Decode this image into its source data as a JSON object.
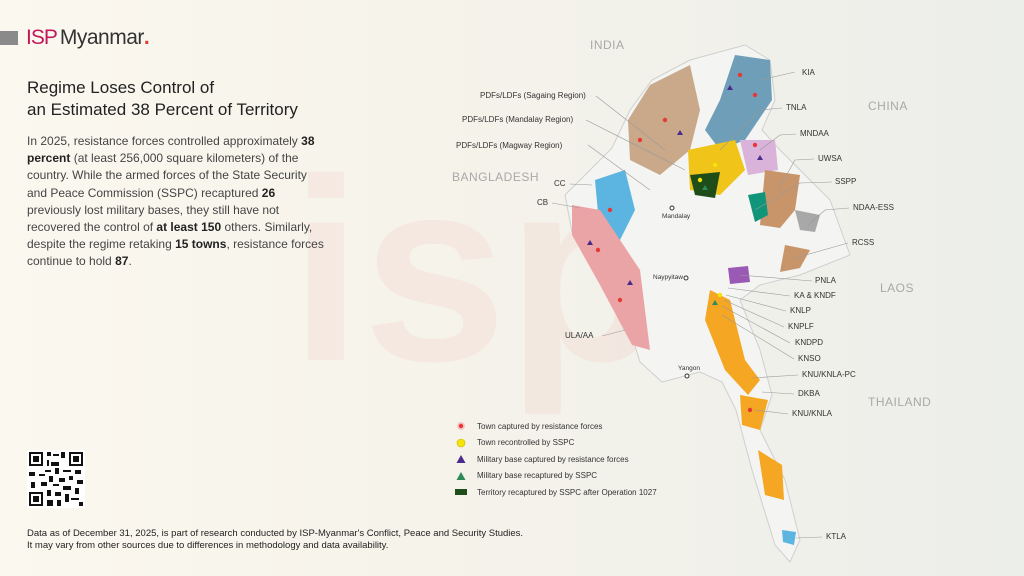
{
  "brand": {
    "prefix": "ISP",
    "name": "Myanmar",
    "dot": "."
  },
  "title_line1": "Regime Loses Control of",
  "title_line2": "an Estimated 38 Percent of Territory",
  "body": {
    "p1": "In 2025, resistance forces controlled approximately ",
    "b1": "38 percent",
    "p2": " (at least 256,000 square kilometers) of the country. While the armed forces of the State Security and Peace Commission (SSPC) recaptured ",
    "b2": "26",
    "p3": " previously lost military bases, they still have not recovered the control of ",
    "b3": "at least 150",
    "p4": " others. Similarly, despite the regime retaking ",
    "b4": "15 towns",
    "p5": ", resistance forces continue to hold ",
    "b5": "87",
    "p6": "."
  },
  "countries": {
    "india": "INDIA",
    "china": "CHINA",
    "bangladesh": "BANGLADESH",
    "laos": "LAOS",
    "thailand": "THAILAND"
  },
  "cities": {
    "mandalay": "Mandalay",
    "naypyitaw": "Naypyitaw",
    "yangon": "Yangon"
  },
  "groups": {
    "kia": "KIA",
    "tnla": "TNLA",
    "mndaa": "MNDAA",
    "uwsa": "UWSA",
    "sspp": "SSPP",
    "ndaa": "NDAA-ESS",
    "rcss": "RCSS",
    "pnla": "PNLA",
    "ka": "KA & KNDF",
    "knlp": "KNLP",
    "knplf": "KNPLF",
    "kndpd": "KNDPD",
    "knso": "KNSO",
    "knupc": "KNU/KNLA-PC",
    "dkba": "DKBA",
    "knu": "KNU/KNLA",
    "ktla": "KTLA",
    "sagaing": "PDFs/LDFs (Sagaing Region)",
    "mandalay": "PDFs/LDFs (Mandalay Region)",
    "magway": "PDFs/LDFs (Magway Region)",
    "cc": "CC",
    "cb": "CB",
    "ula": "ULA/AA"
  },
  "legend": [
    {
      "icon": "red-dot-icon",
      "label": "Town captured by resistance forces",
      "color": "#e53935"
    },
    {
      "icon": "yellow-dot-icon",
      "label": "Town recontrolled by SSPC",
      "color": "#f5e30a"
    },
    {
      "icon": "purple-triangle-icon",
      "label": "Military base captured by resistance forces",
      "color": "#4a2a8a"
    },
    {
      "icon": "green-triangle-icon",
      "label": "Military base recaptured by SSPC",
      "color": "#2e8b57"
    },
    {
      "icon": "dark-green-rect-icon",
      "label": "Territory recaptured by SSPC after Operation 1027",
      "color": "#1f4d1a"
    }
  ],
  "footer": {
    "line1": "Data as of December 31, 2025, is part of research conducted by ISP-Myanmar's Conflict, Peace and Security Studies.",
    "line2": "It may vary from other sources due to differences in methodology and data availability."
  },
  "colors": {
    "kia": "#6f9fb8",
    "tnla": "#f0c419",
    "mndaa": "#d9b3d9",
    "uwsa": "#c8956b",
    "sspp": "#11957a",
    "ndaa": "#a8a8a8",
    "pdf": "#c9a98a",
    "aa": "#eba4a6",
    "knu": "#f5a623",
    "cb": "#5bb5e0",
    "accent": "#c2185b"
  }
}
